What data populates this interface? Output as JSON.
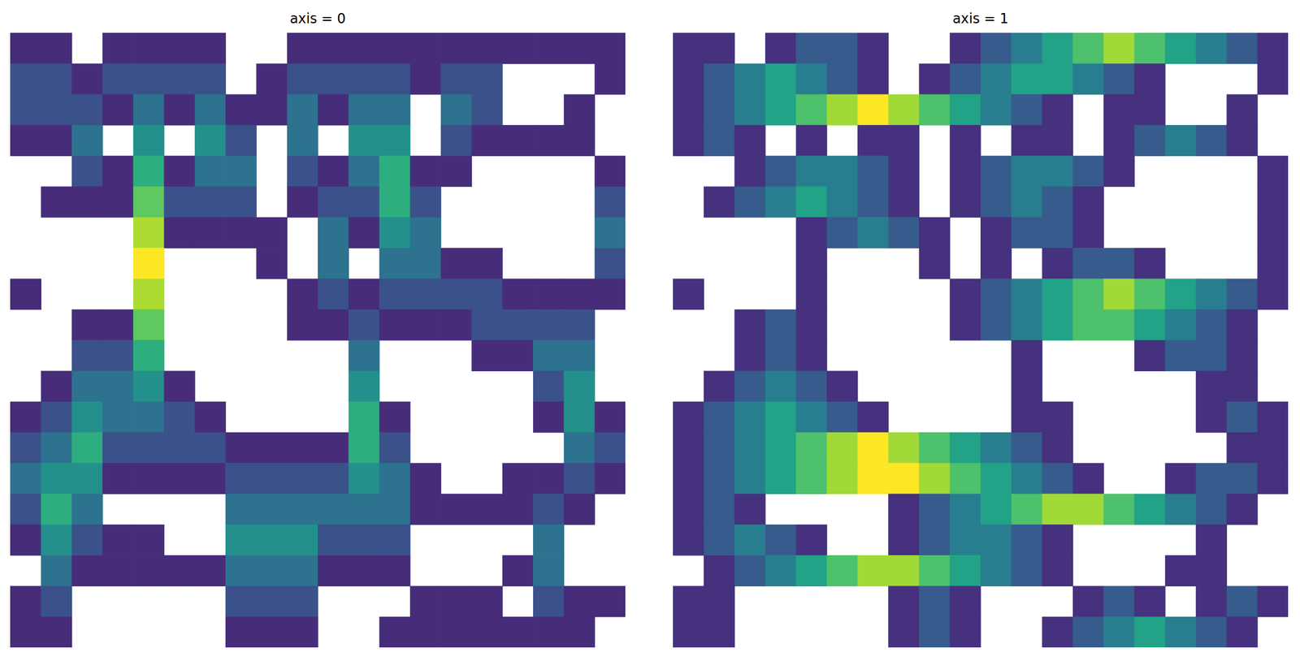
{
  "chart_data": [
    {
      "type": "heatmap",
      "title": "axis = 0",
      "tick_labels": false,
      "cells": [
        [
          1,
          1,
          null,
          1,
          1,
          1,
          1,
          null,
          null,
          1,
          1,
          1,
          1,
          1,
          1,
          1,
          1,
          1,
          1,
          1
        ],
        [
          2,
          2,
          1,
          2,
          2,
          2,
          2,
          null,
          1,
          2,
          2,
          2,
          2,
          1,
          2,
          2,
          null,
          null,
          null,
          1
        ],
        [
          2,
          2,
          2,
          1,
          3,
          1,
          3,
          1,
          1,
          3,
          1,
          3,
          3,
          null,
          3,
          2,
          null,
          null,
          1,
          null
        ],
        [
          1,
          1,
          3,
          null,
          4,
          null,
          4,
          2,
          null,
          3,
          null,
          4,
          4,
          null,
          2,
          1,
          1,
          1,
          1,
          null
        ],
        [
          null,
          null,
          2,
          1,
          5,
          1,
          3,
          3,
          null,
          2,
          1,
          3,
          5,
          1,
          1,
          null,
          null,
          null,
          null,
          1
        ],
        [
          null,
          1,
          1,
          1,
          6,
          2,
          2,
          2,
          null,
          1,
          2,
          2,
          5,
          2,
          null,
          null,
          null,
          null,
          null,
          2
        ],
        [
          null,
          null,
          null,
          null,
          7,
          1,
          1,
          1,
          1,
          null,
          3,
          1,
          4,
          3,
          null,
          null,
          null,
          null,
          null,
          3
        ],
        [
          null,
          null,
          null,
          null,
          8,
          null,
          null,
          null,
          1,
          null,
          3,
          null,
          3,
          3,
          1,
          1,
          null,
          null,
          null,
          2
        ],
        [
          1,
          null,
          null,
          null,
          7,
          null,
          null,
          null,
          null,
          1,
          2,
          1,
          2,
          2,
          2,
          2,
          1,
          1,
          1,
          1
        ],
        [
          null,
          null,
          1,
          1,
          6,
          null,
          null,
          null,
          null,
          1,
          1,
          2,
          1,
          1,
          1,
          2,
          2,
          2,
          2,
          null
        ],
        [
          null,
          null,
          2,
          2,
          5,
          null,
          null,
          null,
          null,
          null,
          null,
          3,
          null,
          null,
          null,
          1,
          1,
          3,
          3,
          null
        ],
        [
          null,
          1,
          3,
          3,
          4,
          1,
          null,
          null,
          null,
          null,
          null,
          4,
          null,
          null,
          null,
          null,
          null,
          2,
          4,
          null
        ],
        [
          1,
          2,
          4,
          3,
          3,
          2,
          1,
          null,
          null,
          null,
          null,
          5,
          1,
          null,
          null,
          null,
          null,
          1,
          4,
          1
        ],
        [
          2,
          3,
          5,
          2,
          2,
          2,
          2,
          1,
          1,
          1,
          1,
          5,
          2,
          null,
          null,
          null,
          null,
          null,
          3,
          2
        ],
        [
          3,
          4,
          4,
          1,
          1,
          1,
          1,
          2,
          2,
          2,
          2,
          4,
          3,
          1,
          null,
          null,
          1,
          1,
          2,
          1
        ],
        [
          2,
          5,
          3,
          null,
          null,
          null,
          null,
          3,
          3,
          3,
          3,
          3,
          3,
          1,
          1,
          1,
          1,
          2,
          1,
          null
        ],
        [
          1,
          4,
          2,
          1,
          1,
          null,
          null,
          4,
          4,
          4,
          2,
          2,
          2,
          null,
          null,
          null,
          null,
          3,
          null,
          null
        ],
        [
          null,
          3,
          1,
          1,
          1,
          1,
          1,
          3,
          3,
          3,
          1,
          1,
          1,
          null,
          null,
          null,
          1,
          3,
          null,
          null
        ],
        [
          1,
          2,
          null,
          null,
          null,
          null,
          null,
          2,
          2,
          2,
          null,
          null,
          null,
          1,
          1,
          1,
          null,
          2,
          1,
          1
        ],
        [
          1,
          1,
          null,
          null,
          null,
          null,
          null,
          1,
          1,
          1,
          null,
          null,
          1,
          1,
          1,
          1,
          1,
          1,
          1,
          null
        ]
      ]
    },
    {
      "type": "heatmap",
      "title": "axis = 1",
      "tick_labels": false,
      "cells": [
        [
          1,
          1,
          null,
          1,
          2,
          2,
          1,
          null,
          null,
          1,
          2,
          3,
          4,
          5,
          6,
          5,
          4,
          3,
          2,
          1
        ],
        [
          1,
          2,
          3,
          4,
          3,
          2,
          1,
          null,
          1,
          2,
          3,
          4,
          4,
          3,
          2,
          1,
          null,
          null,
          null,
          1
        ],
        [
          1,
          2,
          3,
          4,
          5,
          6,
          7,
          6,
          5,
          4,
          3,
          2,
          1,
          null,
          1,
          1,
          null,
          null,
          1,
          null
        ],
        [
          1,
          2,
          1,
          null,
          1,
          null,
          1,
          1,
          null,
          1,
          null,
          1,
          1,
          null,
          1,
          2,
          3,
          2,
          1,
          null
        ],
        [
          null,
          null,
          1,
          2,
          3,
          3,
          2,
          1,
          null,
          1,
          2,
          3,
          3,
          2,
          1,
          null,
          null,
          null,
          null,
          1
        ],
        [
          null,
          1,
          2,
          3,
          4,
          3,
          2,
          1,
          null,
          1,
          2,
          3,
          2,
          1,
          null,
          null,
          null,
          null,
          null,
          1
        ],
        [
          null,
          null,
          null,
          null,
          1,
          2,
          3,
          2,
          1,
          null,
          1,
          2,
          2,
          1,
          null,
          null,
          null,
          null,
          null,
          1
        ],
        [
          null,
          null,
          null,
          null,
          1,
          null,
          null,
          null,
          1,
          null,
          1,
          null,
          1,
          2,
          2,
          1,
          null,
          null,
          null,
          1
        ],
        [
          1,
          null,
          null,
          null,
          1,
          null,
          null,
          null,
          null,
          1,
          2,
          3,
          4,
          5,
          6,
          5,
          4,
          3,
          2,
          1
        ],
        [
          null,
          null,
          1,
          2,
          1,
          null,
          null,
          null,
          null,
          1,
          2,
          3,
          4,
          5,
          5,
          4,
          3,
          2,
          1,
          null
        ],
        [
          null,
          null,
          1,
          2,
          1,
          null,
          null,
          null,
          null,
          null,
          null,
          1,
          null,
          null,
          null,
          1,
          2,
          2,
          1,
          null
        ],
        [
          null,
          1,
          2,
          3,
          2,
          1,
          null,
          null,
          null,
          null,
          null,
          1,
          null,
          null,
          null,
          null,
          null,
          1,
          1,
          null
        ],
        [
          1,
          2,
          3,
          4,
          3,
          2,
          1,
          null,
          null,
          null,
          null,
          1,
          1,
          null,
          null,
          null,
          null,
          1,
          2,
          1
        ],
        [
          1,
          2,
          3,
          4,
          5,
          6,
          7,
          6,
          5,
          4,
          3,
          2,
          1,
          null,
          null,
          null,
          null,
          null,
          1,
          1
        ],
        [
          1,
          2,
          3,
          4,
          5,
          6,
          7,
          7,
          6,
          5,
          4,
          3,
          2,
          1,
          null,
          null,
          1,
          2,
          2,
          1
        ],
        [
          1,
          2,
          1,
          null,
          null,
          null,
          null,
          1,
          2,
          3,
          4,
          5,
          6,
          6,
          5,
          4,
          3,
          2,
          1,
          null
        ],
        [
          1,
          2,
          3,
          2,
          1,
          null,
          null,
          1,
          2,
          3,
          3,
          2,
          1,
          null,
          null,
          null,
          null,
          1,
          null,
          null
        ],
        [
          null,
          1,
          2,
          3,
          4,
          5,
          6,
          6,
          5,
          4,
          3,
          2,
          1,
          null,
          null,
          null,
          1,
          1,
          null,
          null
        ],
        [
          1,
          1,
          null,
          null,
          null,
          null,
          null,
          1,
          2,
          1,
          null,
          null,
          null,
          1,
          2,
          1,
          null,
          1,
          2,
          1
        ],
        [
          1,
          1,
          null,
          null,
          null,
          null,
          null,
          1,
          2,
          1,
          null,
          null,
          1,
          2,
          3,
          4,
          3,
          2,
          1,
          null
        ]
      ]
    }
  ]
}
